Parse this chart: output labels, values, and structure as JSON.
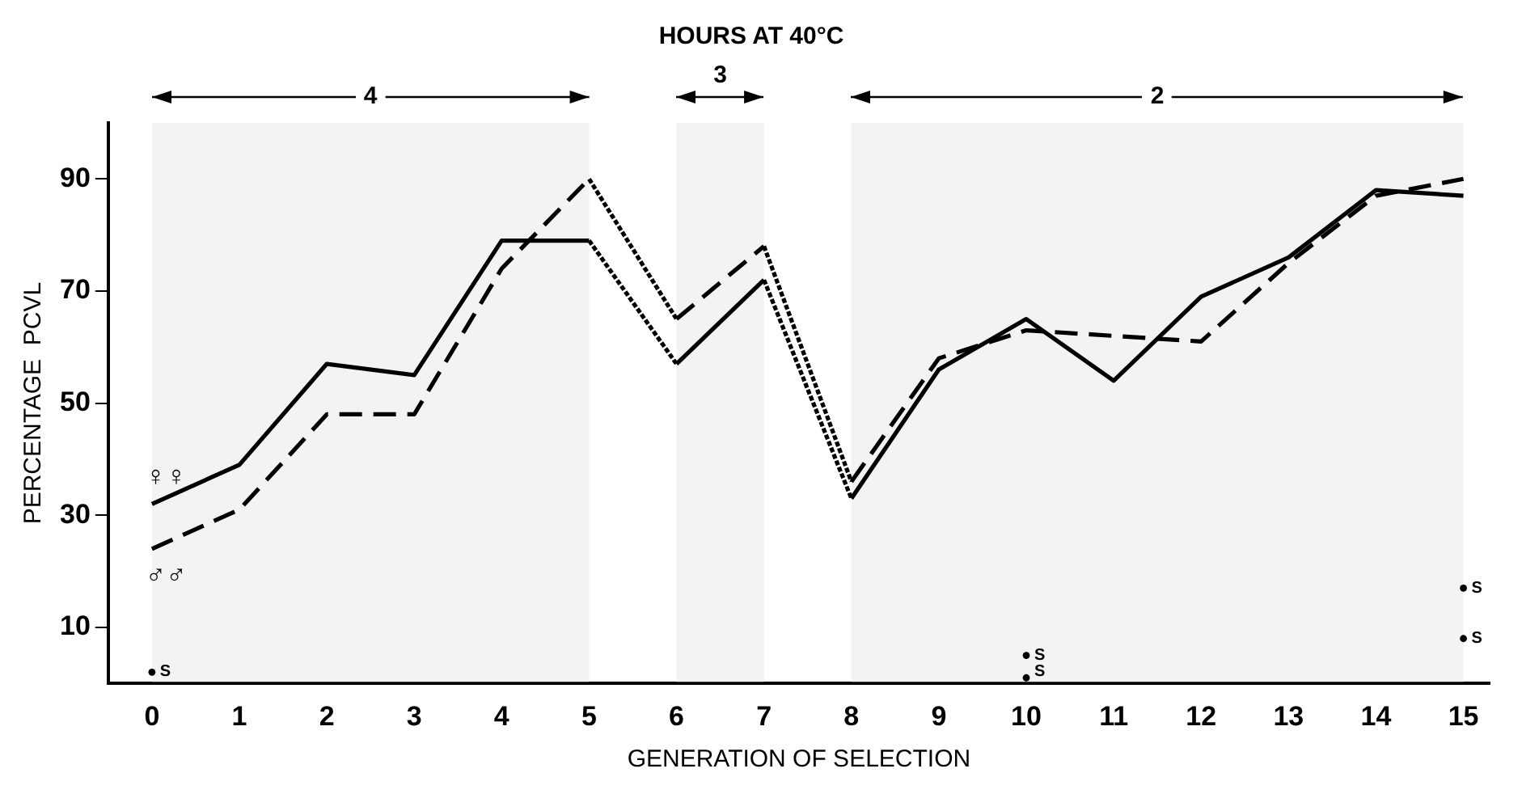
{
  "chart_data": {
    "type": "line",
    "title": "HOURS AT 40°C",
    "xlabel": "GENERATION OF SELECTION",
    "ylabel": "PERCENTAGE  PCVL",
    "xlim": [
      -0.5,
      15.3
    ],
    "xticks": [
      0,
      1,
      2,
      3,
      4,
      5,
      6,
      7,
      8,
      9,
      10,
      11,
      12,
      13,
      14,
      15
    ],
    "ylim": [
      0,
      100
    ],
    "yticks": [
      10,
      30,
      50,
      70,
      90
    ],
    "grid": false,
    "legend": false,
    "marker": "none",
    "series": [
      {
        "name": "♀♀",
        "color": "#000000",
        "line_style": "solid",
        "x": [
          0,
          1,
          2,
          3,
          4,
          5,
          6,
          7,
          8,
          9,
          10,
          11,
          12,
          13,
          14,
          15
        ],
        "values": [
          32,
          39,
          57,
          55,
          79,
          79,
          57,
          72,
          33,
          56,
          65,
          54,
          69,
          76,
          88,
          87
        ]
      },
      {
        "name": "♂♂",
        "color": "#000000",
        "line_style": "dashed",
        "x": [
          0,
          1,
          2,
          3,
          4,
          5,
          6,
          7,
          8,
          9,
          10,
          11,
          12,
          13,
          14,
          15
        ],
        "values": [
          24,
          31,
          48,
          48,
          74,
          90,
          65,
          78,
          36,
          58,
          63,
          62,
          61,
          75,
          87,
          90
        ]
      },
      {
        "type": "scatter",
        "color": "#000000",
        "marker": "circle",
        "x": [
          0,
          10,
          10,
          15,
          15
        ],
        "values": [
          2,
          5,
          1,
          17,
          8
        ]
      }
    ],
    "annotations": [
      {
        "text": "S",
        "x": 0,
        "y": 2
      },
      {
        "text": "S",
        "x": 10,
        "y": 5
      },
      {
        "text": "S",
        "x": 10,
        "y": 1
      },
      {
        "text": "S",
        "x": 15,
        "y": 17
      },
      {
        "text": "S",
        "x": 15,
        "y": 8
      }
    ],
    "bands": [
      {
        "axis": "x",
        "from": 0,
        "to": 5,
        "label": "4",
        "color": "#f3f3f3"
      },
      {
        "axis": "x",
        "from": 6,
        "to": 7,
        "label": "3",
        "color": "#f3f3f3"
      },
      {
        "axis": "x",
        "from": 8,
        "to": 15,
        "label": "2",
        "color": "#f3f3f3"
      }
    ]
  }
}
